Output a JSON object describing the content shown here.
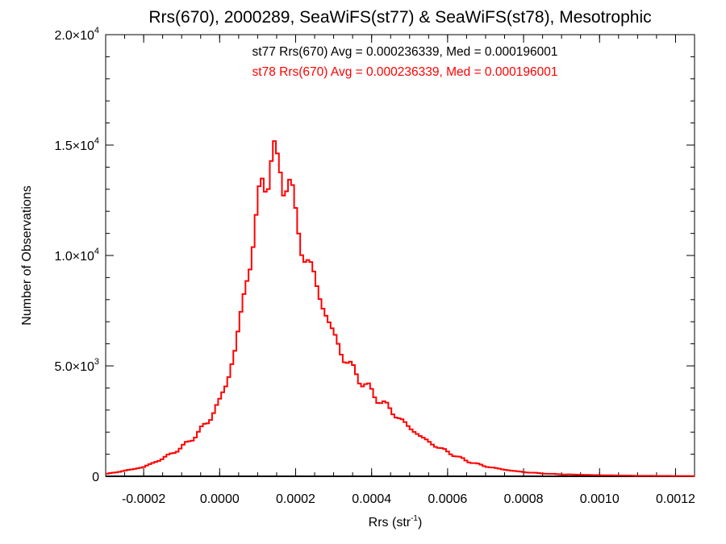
{
  "chart_data": {
    "type": "histogram",
    "title": "Rrs(670), 2000289, SeaWiFS(st77) & SeaWiFS(st78), Mesotrophic",
    "xlabel": {
      "base": "Rrs (str",
      "sup": "-1",
      "tail": ")"
    },
    "ylabel": "Number of Observations",
    "xlim": [
      -0.0003,
      0.00125
    ],
    "ylim": [
      0,
      20000
    ],
    "x_ticks": [
      {
        "value": -0.0002,
        "label": "-0.0002"
      },
      {
        "value": 0.0,
        "label": "0.0000"
      },
      {
        "value": 0.0002,
        "label": "0.0002"
      },
      {
        "value": 0.0004,
        "label": "0.0004"
      },
      {
        "value": 0.0006,
        "label": "0.0006"
      },
      {
        "value": 0.0008,
        "label": "0.0008"
      },
      {
        "value": 0.001,
        "label": "0.0010"
      },
      {
        "value": 0.0012,
        "label": "0.0012"
      }
    ],
    "y_ticks": [
      {
        "value": 0,
        "mantissa": "0",
        "exp": ""
      },
      {
        "value": 5000,
        "mantissa": "5.0×10",
        "exp": "3"
      },
      {
        "value": 10000,
        "mantissa": "1.0×10",
        "exp": "4"
      },
      {
        "value": 15000,
        "mantissa": "1.5×10",
        "exp": "4"
      },
      {
        "value": 20000,
        "mantissa": "2.0×10",
        "exp": "4"
      }
    ],
    "annotations": [
      {
        "text": "st77 Rrs(670) Avg = 0.000236339, Med = 0.000196001",
        "color": "#000000"
      },
      {
        "text": "st78 Rrs(670) Avg = 0.000236339, Med = 0.000196001",
        "color": "#ff0000"
      }
    ],
    "bin_width": 8e-06,
    "series": [
      {
        "name": "st77",
        "color": "#000000",
        "x": [
          -0.0003,
          0.00125
        ],
        "y": [
          0,
          0
        ]
      },
      {
        "name": "st78",
        "color": "#ff0000",
        "x": [
          -0.0003,
          -0.00025,
          -0.0002,
          -0.00015,
          -0.0001,
          -6e-05,
          -3e-05,
          0.0,
          2e-05,
          4e-05,
          6e-05,
          8e-05,
          0.0001,
          0.00011,
          0.00012,
          0.00013,
          0.00014,
          0.00015,
          0.00016,
          0.00017,
          0.00018,
          0.0002,
          0.00022,
          0.00025,
          0.00027,
          0.0003,
          0.00033,
          0.00037,
          0.0004,
          0.00045,
          0.0005,
          0.00055,
          0.0006,
          0.00065,
          0.0007,
          0.00075,
          0.0008,
          0.00085,
          0.0009,
          0.001,
          0.0011,
          0.00125
        ],
        "y": [
          100,
          250,
          420,
          800,
          1300,
          1900,
          2500,
          3400,
          4300,
          5700,
          7700,
          9700,
          12200,
          13000,
          13200,
          14000,
          15200,
          13800,
          13500,
          13300,
          14000,
          11600,
          10200,
          9000,
          7800,
          6400,
          5300,
          4400,
          3800,
          3000,
          2200,
          1550,
          1100,
          700,
          450,
          300,
          190,
          130,
          90,
          50,
          25,
          10
        ]
      }
    ]
  }
}
